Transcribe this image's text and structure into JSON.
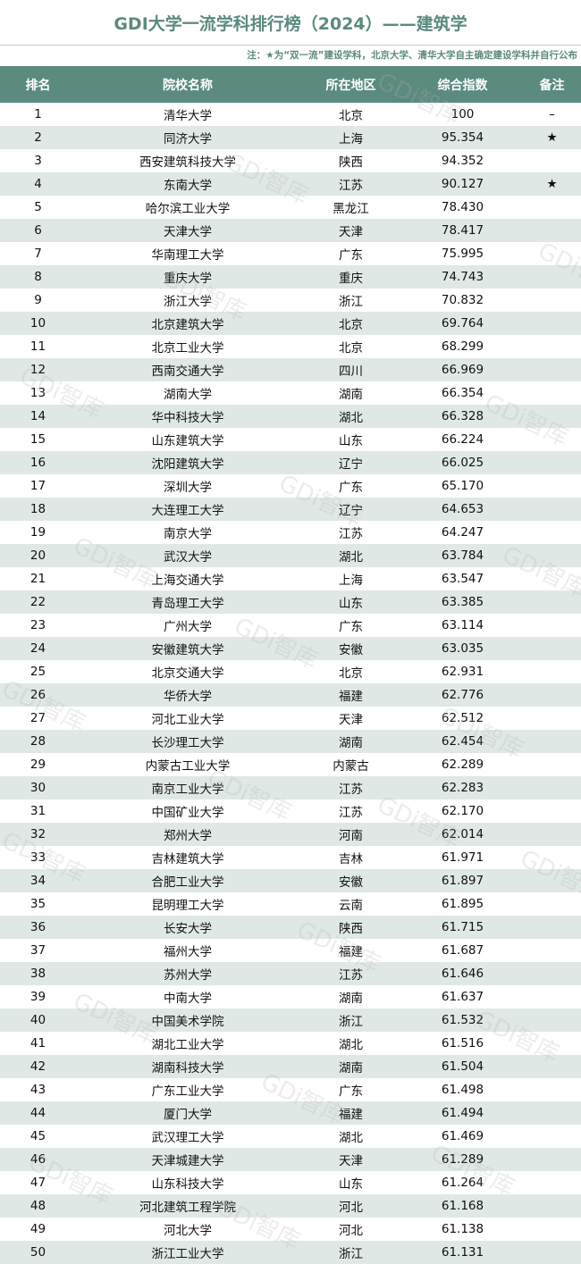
{
  "title": "GDI大学一流学科排行榜（2024）——建筑学",
  "note": "注：★为“双一流”建设学科，北京大学、清华大学自主确定建设学科并自行公布",
  "watermark": "GDi智库",
  "colors": {
    "header": "#5b8a7e",
    "alt_row": "#dfe8e5"
  },
  "headers": [
    "排名",
    "院校名称",
    "所在地区",
    "综合指数",
    "备注"
  ],
  "rows": [
    [
      "1",
      "清华大学",
      "北京",
      "100",
      "–"
    ],
    [
      "2",
      "同济大学",
      "上海",
      "95.354",
      "★"
    ],
    [
      "3",
      "西安建筑科技大学",
      "陕西",
      "94.352",
      ""
    ],
    [
      "4",
      "东南大学",
      "江苏",
      "90.127",
      "★"
    ],
    [
      "5",
      "哈尔滨工业大学",
      "黑龙江",
      "78.430",
      ""
    ],
    [
      "6",
      "天津大学",
      "天津",
      "78.417",
      ""
    ],
    [
      "7",
      "华南理工大学",
      "广东",
      "75.995",
      ""
    ],
    [
      "8",
      "重庆大学",
      "重庆",
      "74.743",
      ""
    ],
    [
      "9",
      "浙江大学",
      "浙江",
      "70.832",
      ""
    ],
    [
      "10",
      "北京建筑大学",
      "北京",
      "69.764",
      ""
    ],
    [
      "11",
      "北京工业大学",
      "北京",
      "68.299",
      ""
    ],
    [
      "12",
      "西南交通大学",
      "四川",
      "66.969",
      ""
    ],
    [
      "13",
      "湖南大学",
      "湖南",
      "66.354",
      ""
    ],
    [
      "14",
      "华中科技大学",
      "湖北",
      "66.328",
      ""
    ],
    [
      "15",
      "山东建筑大学",
      "山东",
      "66.224",
      ""
    ],
    [
      "16",
      "沈阳建筑大学",
      "辽宁",
      "66.025",
      ""
    ],
    [
      "17",
      "深圳大学",
      "广东",
      "65.170",
      ""
    ],
    [
      "18",
      "大连理工大学",
      "辽宁",
      "64.653",
      ""
    ],
    [
      "19",
      "南京大学",
      "江苏",
      "64.247",
      ""
    ],
    [
      "20",
      "武汉大学",
      "湖北",
      "63.784",
      ""
    ],
    [
      "21",
      "上海交通大学",
      "上海",
      "63.547",
      ""
    ],
    [
      "22",
      "青岛理工大学",
      "山东",
      "63.385",
      ""
    ],
    [
      "23",
      "广州大学",
      "广东",
      "63.114",
      ""
    ],
    [
      "24",
      "安徽建筑大学",
      "安徽",
      "63.035",
      ""
    ],
    [
      "25",
      "北京交通大学",
      "北京",
      "62.931",
      ""
    ],
    [
      "26",
      "华侨大学",
      "福建",
      "62.776",
      ""
    ],
    [
      "27",
      "河北工业大学",
      "天津",
      "62.512",
      ""
    ],
    [
      "28",
      "长沙理工大学",
      "湖南",
      "62.454",
      ""
    ],
    [
      "29",
      "内蒙古工业大学",
      "内蒙古",
      "62.289",
      ""
    ],
    [
      "30",
      "南京工业大学",
      "江苏",
      "62.283",
      ""
    ],
    [
      "31",
      "中国矿业大学",
      "江苏",
      "62.170",
      ""
    ],
    [
      "32",
      "郑州大学",
      "河南",
      "62.014",
      ""
    ],
    [
      "33",
      "吉林建筑大学",
      "吉林",
      "61.971",
      ""
    ],
    [
      "34",
      "合肥工业大学",
      "安徽",
      "61.897",
      ""
    ],
    [
      "35",
      "昆明理工大学",
      "云南",
      "61.895",
      ""
    ],
    [
      "36",
      "长安大学",
      "陕西",
      "61.715",
      ""
    ],
    [
      "37",
      "福州大学",
      "福建",
      "61.687",
      ""
    ],
    [
      "38",
      "苏州大学",
      "江苏",
      "61.646",
      ""
    ],
    [
      "39",
      "中南大学",
      "湖南",
      "61.637",
      ""
    ],
    [
      "40",
      "中国美术学院",
      "浙江",
      "61.532",
      ""
    ],
    [
      "41",
      "湖北工业大学",
      "湖北",
      "61.516",
      ""
    ],
    [
      "42",
      "湖南科技大学",
      "湖南",
      "61.504",
      ""
    ],
    [
      "43",
      "广东工业大学",
      "广东",
      "61.498",
      ""
    ],
    [
      "44",
      "厦门大学",
      "福建",
      "61.494",
      ""
    ],
    [
      "45",
      "武汉理工大学",
      "湖北",
      "61.469",
      ""
    ],
    [
      "46",
      "天津城建大学",
      "天津",
      "61.289",
      ""
    ],
    [
      "47",
      "山东科技大学",
      "山东",
      "61.264",
      ""
    ],
    [
      "48",
      "河北建筑工程学院",
      "河北",
      "61.168",
      ""
    ],
    [
      "49",
      "河北大学",
      "河北",
      "61.138",
      ""
    ],
    [
      "50",
      "浙江工业大学",
      "浙江",
      "61.131",
      ""
    ]
  ]
}
